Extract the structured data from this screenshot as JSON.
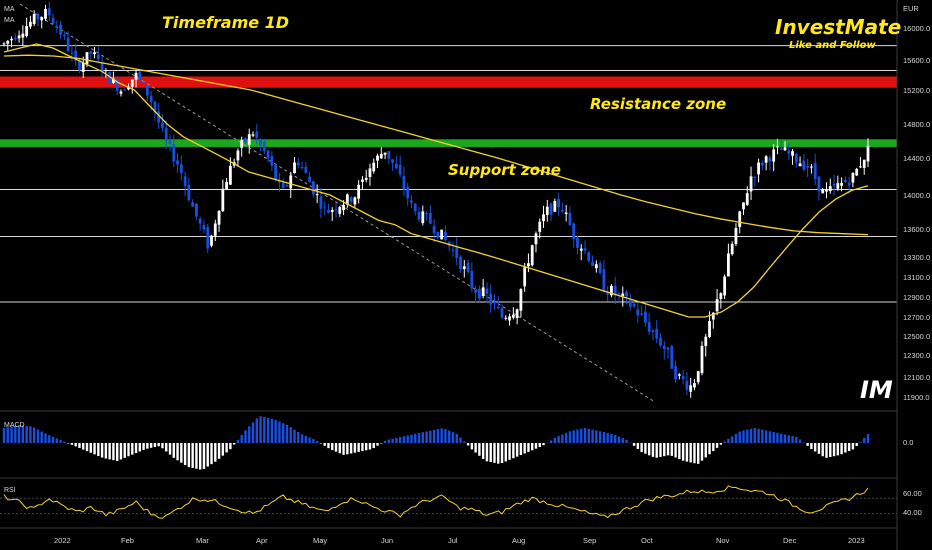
{
  "chart_data": {
    "type": "candlestick",
    "instrument_currency": "EUR",
    "indicator_labels": [
      "MA",
      "MA"
    ],
    "annotations": {
      "timeframe": "Timeframe 1D",
      "resistance": "Resistance zone",
      "support": "Support zone"
    },
    "brand": {
      "name": "InvestMate",
      "tagline": "Like and Follow",
      "logo_text": "IM"
    },
    "y_axis": {
      "ticks": [
        16000,
        15600,
        15200,
        14800,
        14400,
        14000,
        13600,
        13300,
        13100,
        12900,
        12700,
        12500,
        12300,
        12100,
        11900
      ],
      "tick_labels": [
        "16000.0",
        "15600.0",
        "15200.0",
        "14800.0",
        "14400.0",
        "14000.0",
        "13600.0",
        "13300.0",
        "13100.0",
        "12900.0",
        "12700.0",
        "12500.0",
        "12300.0",
        "12100.0",
        "11900.0"
      ],
      "range": [
        11800,
        16300
      ]
    },
    "x_axis": {
      "labels": [
        "2022",
        "Feb",
        "Mar",
        "Apr",
        "May",
        "Jun",
        "Jul",
        "Aug",
        "Sep",
        "Oct",
        "Nov",
        "Dec",
        "2023"
      ]
    },
    "zones": {
      "resistance": {
        "low": 15230,
        "high": 15380,
        "color": "#e01010"
      },
      "support": {
        "low": 14530,
        "high": 14620,
        "color": "#1ca81c"
      }
    },
    "horizontal_levels": [
      15780,
      14060,
      13520,
      12850,
      15460
    ],
    "trendline": {
      "from": {
        "date": "2022-01-03",
        "price": 16300
      },
      "to": {
        "date": "2022-10-04",
        "price": 11850
      }
    },
    "close_series": [
      15800,
      15950,
      16100,
      16200,
      15900,
      15500,
      15700,
      15400,
      15200,
      15400,
      15100,
      14600,
      14300,
      13800,
      13400,
      14100,
      14500,
      14700,
      14400,
      14000,
      14400,
      14100,
      13800,
      13900,
      14000,
      14300,
      14500,
      14200,
      13800,
      13700,
      13500,
      13300,
      13000,
      12900,
      12700,
      12800,
      13400,
      13800,
      13900,
      13500,
      13300,
      13000,
      12900,
      12800,
      12600,
      12400,
      12100,
      12000,
      12500,
      13000,
      13600,
      14200,
      14400,
      14500,
      14400,
      14300,
      14000,
      14100,
      14200,
      14500
    ],
    "ma_short": [
      15700,
      15750,
      15800,
      15750,
      15650,
      15550,
      15450,
      15300,
      15200,
      15000,
      14800,
      14650,
      14550,
      14450,
      14350,
      14250,
      14200,
      14150,
      14100,
      14050,
      14000,
      13900,
      13800,
      13700,
      13650,
      13550,
      13500,
      13450,
      13400,
      13350,
      13300,
      13250,
      13200,
      13150,
      13100,
      13050,
      13000,
      12950,
      12900,
      12850,
      12800,
      12750,
      12700,
      12700,
      12750,
      12850,
      13000,
      13200,
      13400,
      13600,
      13800,
      13950,
      14050,
      14100
    ],
    "ma_long": [
      15650,
      15660,
      15650,
      15620,
      15560,
      15500,
      15440,
      15380,
      15320,
      15260,
      15200,
      15120,
      15040,
      14960,
      14880,
      14800,
      14720,
      14640,
      14560,
      14480,
      14400,
      14320,
      14240,
      14160,
      14080,
      14000,
      13920,
      13850,
      13780,
      13720,
      13670,
      13620,
      13580,
      13560,
      13550,
      13540
    ],
    "macd": {
      "label": "MACD",
      "tick_label": "0.0",
      "range": [
        -1,
        1
      ],
      "histogram": [
        0.5,
        0.6,
        0.55,
        0.3,
        0.1,
        -0.1,
        -0.3,
        -0.5,
        -0.6,
        -0.4,
        -0.2,
        -0.1,
        -0.5,
        -0.8,
        -0.9,
        -0.6,
        -0.2,
        0.4,
        0.9,
        0.8,
        0.6,
        0.3,
        0.1,
        -0.2,
        -0.4,
        -0.3,
        -0.2,
        0.1,
        0.2,
        0.3,
        0.4,
        0.5,
        0.3,
        -0.2,
        -0.6,
        -0.7,
        -0.5,
        -0.3,
        -0.1,
        0.2,
        0.4,
        0.5,
        0.4,
        0.3,
        0.1,
        -0.3,
        -0.5,
        -0.4,
        -0.6,
        -0.7,
        -0.3,
        0.1,
        0.4,
        0.5,
        0.4,
        0.3,
        0.2,
        -0.2,
        -0.5,
        -0.4,
        -0.2,
        0.3
      ]
    },
    "rsi": {
      "label": "RSI",
      "tick_labels": [
        "60.00",
        "40.00"
      ],
      "levels": [
        60,
        40
      ],
      "range": [
        25,
        80
      ],
      "values": [
        62,
        55,
        45,
        60,
        50,
        42,
        48,
        38,
        45,
        55,
        40,
        35,
        48,
        60,
        58,
        52,
        45,
        40,
        50,
        62,
        55,
        48,
        42,
        55,
        60,
        50,
        44,
        38,
        50,
        58,
        62,
        48,
        45,
        38,
        42,
        52,
        60,
        55,
        50,
        45,
        40,
        35,
        42,
        50,
        58,
        62,
        65,
        70,
        68,
        72,
        75,
        70,
        68,
        60,
        50,
        42,
        48,
        55,
        62,
        72
      ]
    },
    "grid": false,
    "legend": "none"
  },
  "colors": {
    "background": "#000000",
    "candle_up": "#ffffff",
    "candle_down": "#1a4fe0",
    "ma": "#f2d22e",
    "annotation": "#ffe815",
    "macd_pos": "#1a4fe0",
    "macd_neg": "#ffffff"
  }
}
